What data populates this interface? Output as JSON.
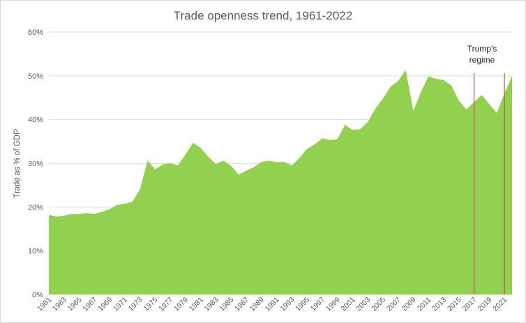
{
  "chart_data": {
    "type": "area",
    "title": "Trade openness trend, 1961-2022",
    "xlabel": "",
    "ylabel": "Trade as % of GDP",
    "ylim": [
      0,
      60
    ],
    "ytick_labels": [
      "0%",
      "10%",
      "20%",
      "30%",
      "40%",
      "50%",
      "60%"
    ],
    "ytick_values": [
      0,
      10,
      20,
      30,
      40,
      50,
      60
    ],
    "xtick_labels": [
      "1961",
      "1963",
      "1965",
      "1967",
      "1969",
      "1971",
      "1973",
      "1975",
      "1977",
      "1979",
      "1981",
      "1983",
      "1985",
      "1987",
      "1989",
      "1991",
      "1993",
      "1995",
      "1997",
      "1999",
      "2001",
      "2003",
      "2005",
      "2007",
      "2009",
      "2011",
      "2013",
      "2015",
      "2017",
      "2019",
      "2021"
    ],
    "grid": true,
    "legend": "none",
    "fill_color": "#92D050",
    "marker_color": "#C0504D",
    "x": [
      1961,
      1962,
      1963,
      1964,
      1965,
      1966,
      1967,
      1968,
      1969,
      1970,
      1971,
      1972,
      1973,
      1974,
      1975,
      1976,
      1977,
      1978,
      1979,
      1980,
      1981,
      1982,
      1983,
      1984,
      1985,
      1986,
      1987,
      1988,
      1989,
      1990,
      1991,
      1992,
      1993,
      1994,
      1995,
      1996,
      1997,
      1998,
      1999,
      2000,
      2001,
      2002,
      2003,
      2004,
      2005,
      2006,
      2007,
      2008,
      2009,
      2010,
      2011,
      2012,
      2013,
      2014,
      2015,
      2016,
      2017,
      2018,
      2019,
      2020,
      2021,
      2022
    ],
    "values": [
      18.2,
      17.8,
      18.0,
      18.4,
      18.4,
      18.6,
      18.4,
      18.9,
      19.5,
      20.5,
      20.7,
      21.2,
      24.0,
      30.6,
      28.6,
      29.7,
      30.0,
      29.5,
      32.0,
      34.7,
      33.5,
      31.5,
      29.8,
      30.6,
      29.4,
      27.4,
      28.3,
      29.1,
      30.3,
      30.6,
      30.2,
      30.3,
      29.5,
      31.2,
      33.3,
      34.3,
      35.7,
      35.3,
      35.5,
      38.8,
      37.6,
      37.8,
      39.4,
      42.5,
      44.8,
      47.5,
      48.8,
      51.3,
      42.0,
      46.3,
      49.9,
      49.3,
      49.0,
      47.8,
      44.3,
      42.3,
      44.0,
      45.6,
      43.5,
      41.5,
      46.0,
      50.0
    ],
    "annotation": {
      "text_lines": [
        "Trump's",
        "regime"
      ],
      "start_year": 2017,
      "end_year": 2021
    }
  }
}
